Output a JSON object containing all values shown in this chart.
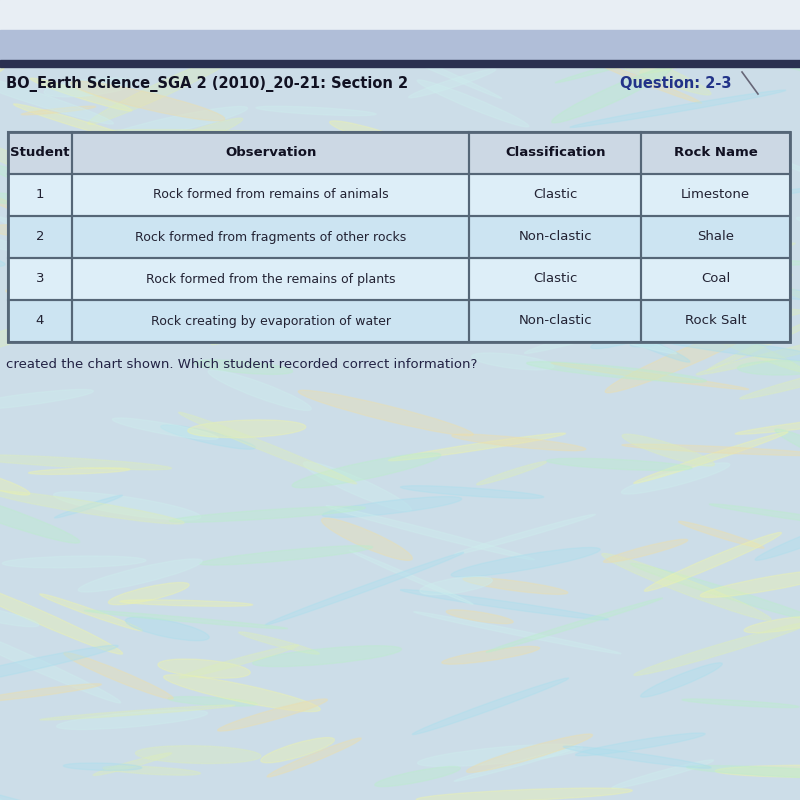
{
  "header_row": [
    "Student",
    "Observation",
    "Classification",
    "Rock Name"
  ],
  "rows": [
    [
      "1",
      "Rock formed from remains of animals",
      "Clastic",
      "Limestone"
    ],
    [
      "2",
      "Rock formed from fragments of other rocks",
      "Non-clastic",
      "Shale"
    ],
    [
      "3",
      "Rock formed from the remains of plants",
      "Clastic",
      "Coal"
    ],
    [
      "4",
      "Rock creating by evaporation of water",
      "Non-clastic",
      "Rock Salt"
    ]
  ],
  "title_left": "BO_Earth Science_SGA 2 (2010)_20-21: Section 2",
  "title_right": "Question: 2-3",
  "footer_text": "created the chart shown. Which student recorded correct information?",
  "bg_main": "#ccdde8",
  "bg_top_stripe": "#b0bed8",
  "bg_dark_bar": "#2a3050",
  "table_border_color": "#556677",
  "header_bg": "#ccd8e4",
  "cell_bg": "#ddeef8",
  "cell_bg_alt": "#cce4f2",
  "title_text_color": "#111122",
  "title_right_color": "#223388",
  "footer_color": "#222244",
  "swirl_colors": [
    "#aaddee",
    "#eef4aa",
    "#bbeecc",
    "#eeddaa",
    "#cceeee",
    "#ddeebb"
  ],
  "diagonal_color": "#666677"
}
